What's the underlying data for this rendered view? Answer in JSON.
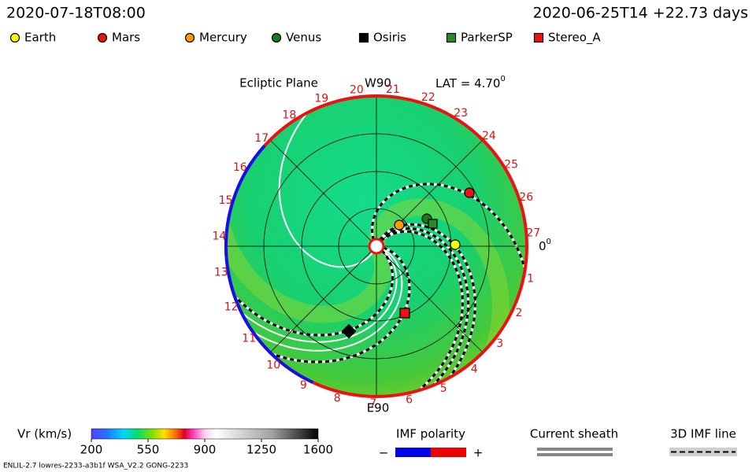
{
  "header": {
    "left": "2020-07-18T08:00",
    "right": "2020-06-25T14 +22.73 days"
  },
  "legend": [
    {
      "label": "Earth",
      "color": "#ffff00",
      "shape": "circle"
    },
    {
      "label": "Mars",
      "color": "#ee1111",
      "shape": "circle"
    },
    {
      "label": "Mercury",
      "color": "#ff9900",
      "shape": "circle"
    },
    {
      "label": "Venus",
      "color": "#1a7a1a",
      "shape": "circle"
    },
    {
      "label": "Osiris",
      "color": "#000000",
      "shape": "square"
    },
    {
      "label": "ParkerSP",
      "color": "#2a8a2a",
      "shape": "square"
    },
    {
      "label": "Stereo_A",
      "color": "#ee1111",
      "shape": "square"
    }
  ],
  "plot": {
    "title": "Ecliptic Plane",
    "top_label": "W90",
    "lat": "LAT = 4.70",
    "lat_unit": "0",
    "right_label": "0",
    "right_unit": "0",
    "bottom_label": "E90",
    "sectors": [
      "1",
      "2",
      "3",
      "4",
      "5",
      "6",
      "7",
      "8",
      "9",
      "10",
      "11",
      "12",
      "13",
      "14",
      "15",
      "16",
      "17",
      "18",
      "19",
      "20",
      "21",
      "22",
      "23",
      "24",
      "25",
      "26",
      "27"
    ]
  },
  "colorbar": {
    "label": "Vr (km/s)",
    "lim": [
      200,
      1600
    ],
    "ticks": [
      200,
      550,
      900,
      1250,
      1600
    ]
  },
  "imf": {
    "title": "IMF polarity",
    "minus": "−",
    "plus": "+"
  },
  "current_sheath": "Current sheath",
  "imf_line": "3D IMF line",
  "footer": "ENLIL-2.7 lowres-2233-a3b1f WSA_V2.2 GONG-2233"
}
